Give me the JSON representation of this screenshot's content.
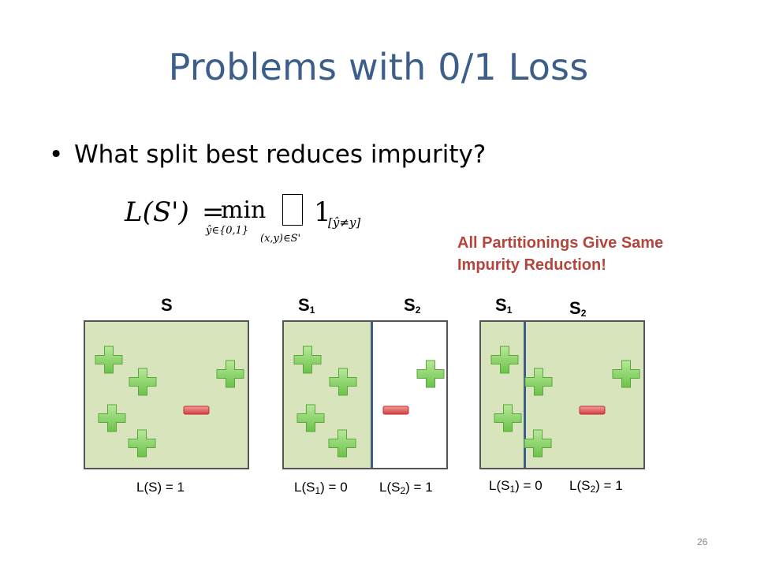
{
  "slide": {
    "title": "Problems with 0/1 Loss",
    "bullet": "What split best reduces impurity?",
    "formula": {
      "lhs": "L(S')",
      "eq": "=",
      "min": "min",
      "min_sub": "ŷ∈{0,1}",
      "sum_sub": "(x,y)∈S'",
      "one": "1",
      "indicator": "[ŷ≠y]"
    },
    "note_line1": "All Partitionings Give Same",
    "note_line2": "Impurity Reduction!",
    "page_number": "26"
  },
  "panels": [
    {
      "labels": [
        "S"
      ],
      "loss_labels": [
        {
          "base": "L(S) = 1"
        }
      ]
    },
    {
      "labels": [
        {
          "base": "S",
          "sub": "1"
        },
        {
          "base": "S",
          "sub": "2"
        }
      ],
      "loss_labels": [
        {
          "pre": "L(S",
          "sub": "1",
          "post": ") = 0"
        },
        {
          "pre": "L(S",
          "sub": "2",
          "post": ") = 1"
        }
      ]
    },
    {
      "labels": [
        {
          "base": "S",
          "sub": "1"
        },
        {
          "base": "S",
          "sub": "2"
        }
      ],
      "loss_labels": [
        {
          "pre": "L(S",
          "sub": "1",
          "post": ") = 0"
        },
        {
          "pre": "L(S",
          "sub": "2",
          "post": ") = 1"
        }
      ]
    }
  ],
  "colors": {
    "title": "#3b5f8a",
    "note": "#b5443c",
    "box_fill": "#d7e4bc",
    "plus": "#8ed36b",
    "minus": "#e05555",
    "divider": "#3d5d89"
  },
  "icons": [
    "plus-sign-icon",
    "minus-sign-icon"
  ]
}
